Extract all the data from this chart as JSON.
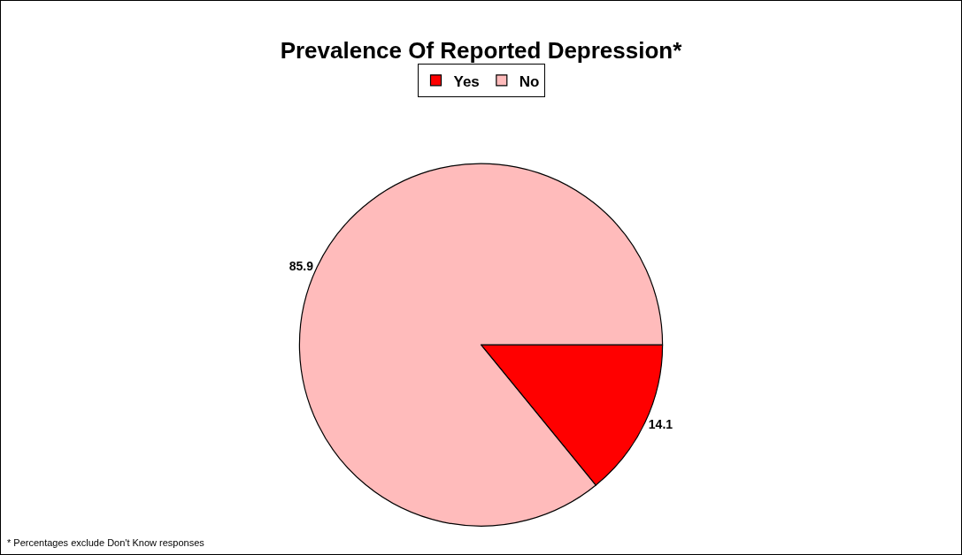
{
  "chart_data": {
    "type": "pie",
    "title": "Prevalence Of Reported Depression*",
    "categories": [
      "Yes",
      "No"
    ],
    "values": [
      14.1,
      85.9
    ],
    "colors": [
      "#ff0000",
      "#ffbbbb"
    ],
    "data_labels": true,
    "legend": "top",
    "annotations": [
      "* Percentages exclude Don't Know responses"
    ]
  }
}
